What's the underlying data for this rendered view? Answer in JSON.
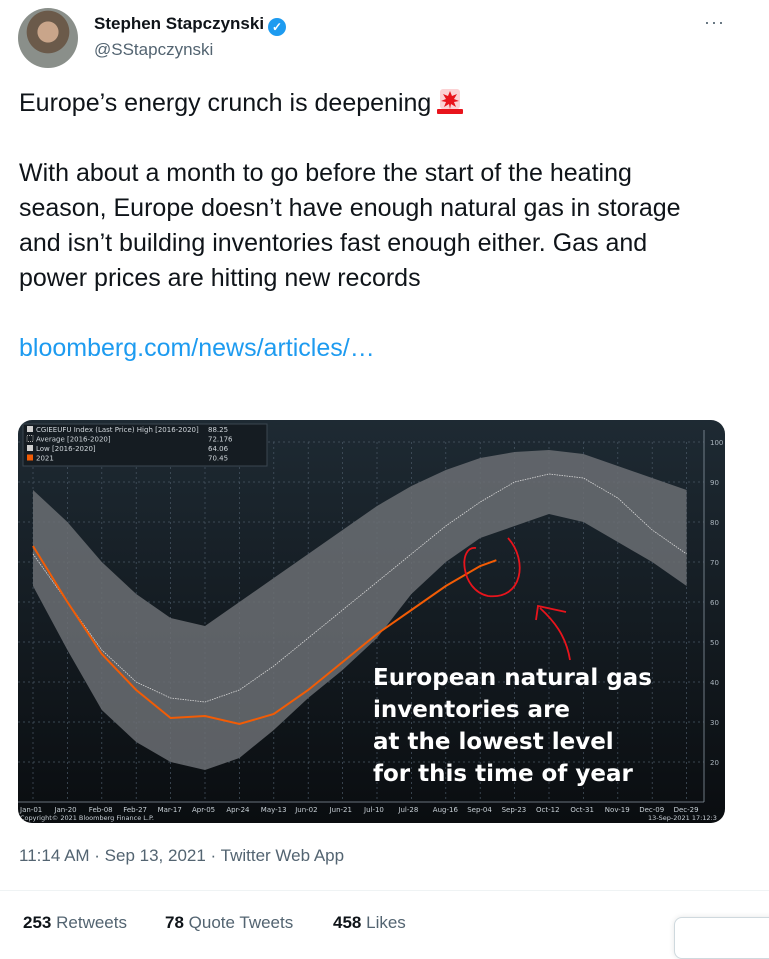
{
  "tweet": {
    "author_name": "Stephen Stapczynski",
    "handle": "@SStapczynski",
    "paragraphs": [
      "Europe’s energy crunch is deepening",
      "With about a month to go before the start of the heating season, Europe doesn’t have enough natural gas in storage and isn’t building inventories fast enough either. Gas and power prices are hitting new records"
    ],
    "emoji": "police-car-light",
    "link": "bloomberg.com/news/articles/…",
    "timestamp": "11:14 AM · Sep 13, 2021 · Twitter Web App",
    "retweets": "253",
    "retweets_label": "Retweets",
    "quotes": "78",
    "quotes_label": "Quote Tweets",
    "likes": "458",
    "likes_label": "Likes"
  },
  "chart_data": {
    "type": "area",
    "legend": [
      {
        "label": "CGIEEUFU Index (Last Price) High [2016-2020]",
        "value": "88.25"
      },
      {
        "label": "Average [2016-2020]",
        "value": "72.176"
      },
      {
        "label": "Low [2016-2020]",
        "value": "64.06"
      },
      {
        "label": "2021",
        "value": "70.45"
      }
    ],
    "legend_placement": "top-left",
    "categories": [
      "Jan-01",
      "Jan-20",
      "Feb-08",
      "Feb-27",
      "Mar-17",
      "Apr-05",
      "Apr-24",
      "May-13",
      "Jun-02",
      "Jun-21",
      "Jul-10",
      "Jul-28",
      "Aug-16",
      "Sep-04",
      "Sep-23",
      "Oct-12",
      "Oct-31",
      "Nov-19",
      "Dec-09",
      "Dec-29"
    ],
    "series": [
      {
        "name": "High [2016-2020]",
        "values": [
          88,
          80,
          70,
          62,
          56,
          54,
          60,
          66,
          72,
          78,
          84,
          89,
          93,
          96,
          97.5,
          98,
          97,
          94,
          91,
          88
        ]
      },
      {
        "name": "Average [2016-2020]",
        "values": [
          72,
          60,
          48,
          40,
          36,
          35,
          38,
          44,
          51,
          58,
          65,
          72,
          79,
          85,
          90,
          92,
          91,
          86,
          78,
          72
        ]
      },
      {
        "name": "Low [2016-2020]",
        "values": [
          64,
          48,
          33,
          25,
          20,
          18,
          21,
          28,
          36,
          43,
          51,
          62,
          70,
          76,
          79,
          82,
          80,
          75,
          70,
          64
        ]
      },
      {
        "name": "2021",
        "values": [
          74,
          60,
          47,
          38,
          31,
          31.5,
          29.5,
          32,
          38,
          45,
          52,
          58,
          64,
          69,
          null,
          null,
          null,
          null,
          null,
          null
        ],
        "last_point": {
          "date": "Sep-13",
          "value": 70.45
        }
      }
    ],
    "yticks": [
      20,
      30,
      40,
      50,
      60,
      70,
      80,
      90,
      100
    ],
    "ylim": [
      15,
      103
    ],
    "y_axis_side": "right",
    "grid": true,
    "colors": {
      "band": "#6b6f73",
      "average": "#d8d8d8",
      "2021": "#f25c05",
      "annotation": "#e8141c"
    },
    "annotation": [
      "European natural gas",
      "inventories are",
      "at the lowest level",
      "for this time of year"
    ],
    "footer_left": "Copyright© 2021 Bloomberg Finance L.P.",
    "footer_right": "13-Sep-2021 17:12:3"
  }
}
